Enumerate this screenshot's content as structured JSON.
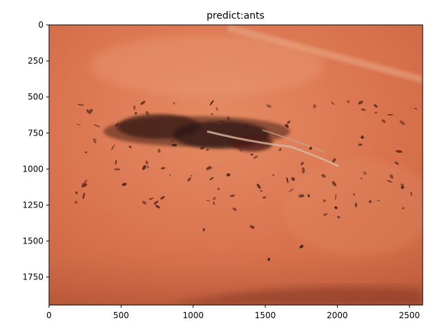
{
  "figure": {
    "title": "predict:ants",
    "image_subject": "ants-on-terracotta-surface",
    "colors": {
      "surface_base": "#d9734e",
      "surface_light": "#e58a63",
      "surface_shadow": "#b9553a",
      "ant_dark": "#3a1f18",
      "ant_mid": "#5b2b20",
      "frame": "#000000",
      "background": "#ffffff"
    }
  },
  "axes": {
    "x": {
      "ticks": [
        0,
        500,
        1000,
        1500,
        2000,
        2500
      ],
      "range": [
        0,
        2592
      ]
    },
    "y": {
      "ticks": [
        0,
        250,
        500,
        750,
        1000,
        1250,
        1500,
        1750
      ],
      "range": [
        0,
        1944
      ],
      "inverted": true
    }
  }
}
